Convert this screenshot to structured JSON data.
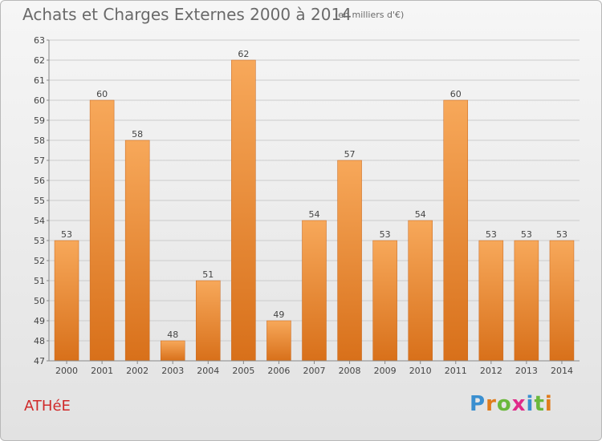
{
  "header": {
    "title": "Achats et Charges Externes 2000 à 2014",
    "unit": "(en milliers d'€)"
  },
  "footer": {
    "place": "ATHéE",
    "logo_text": "Proxiti"
  },
  "colors": {
    "bar_top": "#f7a85a",
    "bar_bottom": "#d8701a",
    "grid": "#cccccc",
    "place": "#d02a2a",
    "logo": [
      "#3a8fd0",
      "#e07c1c",
      "#6ab83c",
      "#e02a8a",
      "#3a8fd0",
      "#6ab83c",
      "#e07c1c"
    ]
  },
  "chart_data": {
    "type": "bar",
    "title": "Achats et Charges Externes 2000 à 2014",
    "subtitle": "(en milliers d'€)",
    "categories": [
      "2000",
      "2001",
      "2002",
      "2003",
      "2004",
      "2005",
      "2006",
      "2007",
      "2008",
      "2009",
      "2010",
      "2011",
      "2012",
      "2013",
      "2014"
    ],
    "values": [
      53,
      60,
      58,
      48,
      51,
      62,
      49,
      54,
      57,
      53,
      54,
      60,
      53,
      53,
      53
    ],
    "ylim": [
      47,
      63
    ],
    "yticks": [
      47,
      48,
      49,
      50,
      51,
      52,
      53,
      54,
      55,
      56,
      57,
      58,
      59,
      60,
      61,
      62,
      63
    ],
    "grid": true,
    "data_labels": true
  }
}
